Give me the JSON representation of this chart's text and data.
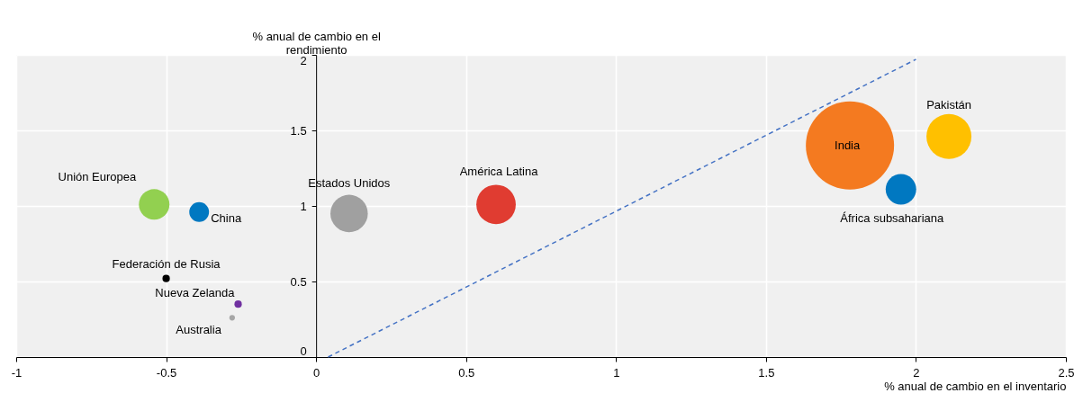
{
  "chart_data": {
    "type": "bubble",
    "xlabel": "% anual de cambio en el inventario",
    "ylabel": "% anual de cambio en el rendimiento",
    "xlim": [
      -1,
      2.5
    ],
    "xticks": [
      -1,
      -0.5,
      0,
      0.5,
      1,
      1.5,
      2,
      2.5
    ],
    "ylim": [
      0,
      2
    ],
    "yticks": [
      0,
      0.5,
      1,
      1.5,
      2
    ],
    "grid": true,
    "series": [
      {
        "type": "bubble",
        "x": [
          -0.54,
          -0.39,
          -0.5,
          -0.26,
          -0.28,
          0.11,
          0.6,
          1.78,
          2.11,
          1.95
        ],
        "values": [
          1.01,
          0.96,
          0.52,
          0.35,
          0.26,
          0.95,
          1.01,
          1.4,
          1.46,
          1.11
        ],
        "sizes": [
          0.12,
          0.05,
          0.007,
          0.007,
          0.004,
          0.18,
          0.2,
          1,
          0.26,
          0.12
        ],
        "colors": [
          "#92d050",
          "#0078c1",
          "#000000",
          "#7030a0",
          "#a6a6a6",
          "#a0a0a0",
          "#e03c31",
          "#f47a20",
          "#ffc000",
          "#0078c1"
        ]
      },
      {
        "type": "line",
        "x": [
          0.04,
          2.0
        ],
        "values": [
          0,
          1.97
        ],
        "color": "#4472c4",
        "line_style": "dashed"
      }
    ],
    "annotations": [
      {
        "text": "Unión Europea",
        "x": -0.54,
        "y": 1.01
      },
      {
        "text": "China",
        "x": -0.39,
        "y": 0.96
      },
      {
        "text": "Federación de Rusia",
        "x": -0.5,
        "y": 0.52
      },
      {
        "text": "Nueva Zelanda",
        "x": -0.26,
        "y": 0.35
      },
      {
        "text": "Australia",
        "x": -0.28,
        "y": 0.26
      },
      {
        "text": "Estados Unidos",
        "x": 0.11,
        "y": 0.95
      },
      {
        "text": "América Latina",
        "x": 0.6,
        "y": 1.01
      },
      {
        "text": "India",
        "x": 1.78,
        "y": 1.4
      },
      {
        "text": "Pakistán",
        "x": 2.11,
        "y": 1.46
      },
      {
        "text": "África subsahariana",
        "x": 1.95,
        "y": 1.11
      }
    ]
  }
}
